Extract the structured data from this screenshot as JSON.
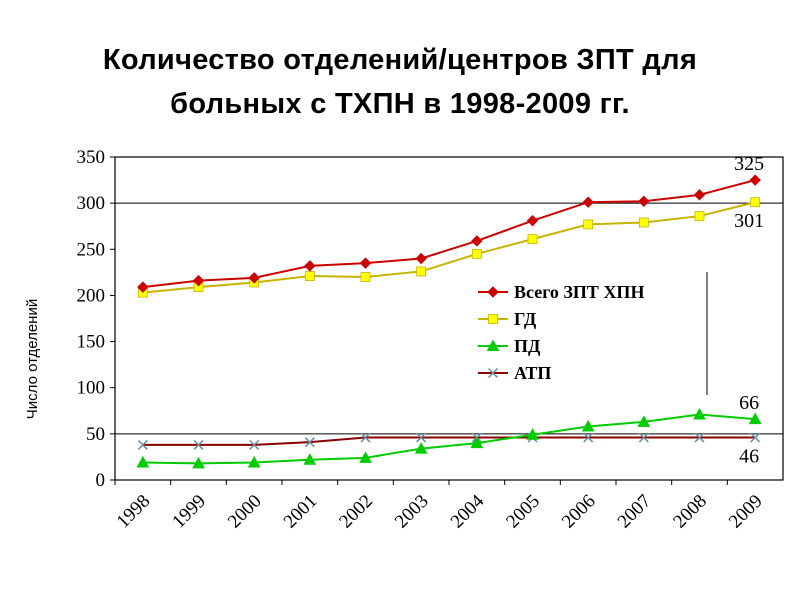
{
  "title_lines": [
    "Количество отделений/центров ЗПТ для",
    "больных с ТХПН в 1998-2009 гг."
  ],
  "chart_data": {
    "type": "line",
    "ylabel": "Число отделений",
    "ylim": [
      0,
      350
    ],
    "y_ticks": [
      "0",
      "50",
      "100",
      "150",
      "200",
      "250",
      "300",
      "350"
    ],
    "x_ticks": [
      "1998",
      "1999",
      "2000",
      "2001",
      "2002",
      "2003",
      "2004",
      "2005",
      "2006",
      "2007",
      "2008",
      "2009"
    ],
    "categories": [
      "1998",
      "1999",
      "2000",
      "2001",
      "2002",
      "2003",
      "2004",
      "2005",
      "2006",
      "2007",
      "2008",
      "2009"
    ],
    "gridlines_y": [
      50,
      300
    ],
    "legend_position": "center-right",
    "series": [
      {
        "name": "Всего ЗПТ ХПН",
        "color": "#cc0000",
        "marker": "diamond",
        "values": [
          209,
          216,
          219,
          232,
          235,
          240,
          259,
          281,
          301,
          302,
          309,
          325
        ]
      },
      {
        "name": "ГД",
        "color": "#ffff00",
        "marker": "square",
        "values": [
          203,
          209,
          214,
          221,
          220,
          226,
          245,
          261,
          277,
          279,
          286,
          301
        ]
      },
      {
        "name": "ПД",
        "color": "#00cc00",
        "marker": "triangle",
        "values": [
          19,
          18,
          19,
          22,
          24,
          34,
          40,
          49,
          58,
          63,
          71,
          66
        ]
      },
      {
        "name": "АТП",
        "color": "#8b0000",
        "marker": "x",
        "values": [
          38,
          38,
          38,
          41,
          46,
          46,
          46,
          46,
          46,
          46,
          46,
          46
        ]
      }
    ],
    "data_labels": [
      {
        "text": "325",
        "series": 0,
        "index": 11,
        "pos": "above"
      },
      {
        "text": "301",
        "series": 1,
        "index": 11,
        "pos": "below"
      },
      {
        "text": "66",
        "series": 2,
        "index": 11,
        "pos": "above"
      },
      {
        "text": "46",
        "series": 3,
        "index": 11,
        "pos": "below"
      }
    ]
  }
}
